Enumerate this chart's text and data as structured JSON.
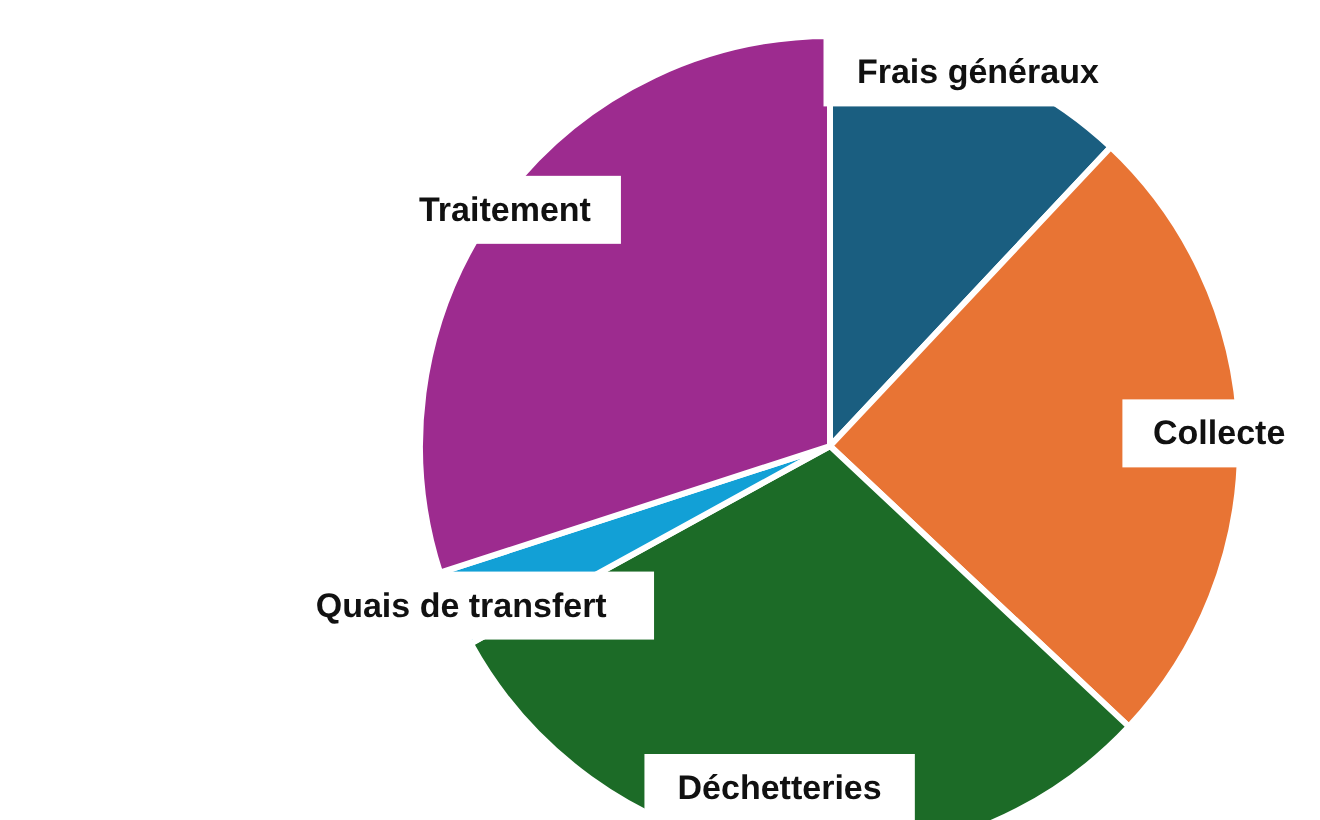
{
  "chart_data": {
    "type": "pie",
    "categories": [
      "Frais généraux",
      "Collecte",
      "Déchetteries",
      "Quais de transfert",
      "Traitement"
    ],
    "values": [
      12,
      25,
      30,
      3,
      30
    ],
    "colors": [
      "#1a5e80",
      "#e87434",
      "#1c6b27",
      "#12a0d6",
      "#9d2b8f"
    ],
    "legend": false
  }
}
